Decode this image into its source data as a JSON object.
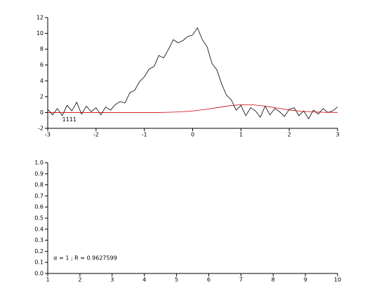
{
  "chart_data": [
    {
      "type": "line",
      "annotation": "1111",
      "xlim": [
        -3,
        3
      ],
      "xticks": [
        -3,
        -2,
        -1,
        0,
        1,
        2,
        3
      ],
      "ylim": [
        -2,
        12
      ],
      "yticks": [
        -2,
        0,
        2,
        4,
        6,
        8,
        10,
        12
      ],
      "series": [
        {
          "color": "#000000",
          "x": [
            -3.0,
            -2.9,
            -2.8,
            -2.7,
            -2.6,
            -2.5,
            -2.4,
            -2.3,
            -2.2,
            -2.1,
            -2.0,
            -1.9,
            -1.8,
            -1.7,
            -1.6,
            -1.5,
            -1.4,
            -1.3,
            -1.2,
            -1.1,
            -1.0,
            -0.9,
            -0.8,
            -0.7,
            -0.6,
            -0.5,
            -0.4,
            -0.3,
            -0.2,
            -0.1,
            0.0,
            0.1,
            0.2,
            0.3,
            0.4,
            0.5,
            0.6,
            0.7,
            0.8,
            0.9,
            1.0,
            1.1,
            1.2,
            1.3,
            1.4,
            1.5,
            1.6,
            1.7,
            1.8,
            1.9,
            2.0,
            2.1,
            2.2,
            2.3,
            2.4,
            2.5,
            2.6,
            2.7,
            2.8,
            2.9,
            3.0
          ],
          "values": [
            0.4,
            -0.3,
            0.5,
            -0.4,
            0.9,
            0.2,
            1.3,
            -0.2,
            0.8,
            0.1,
            0.6,
            -0.3,
            0.7,
            0.3,
            1.0,
            1.4,
            1.2,
            2.5,
            2.8,
            3.9,
            4.5,
            5.5,
            5.8,
            7.2,
            6.9,
            8.0,
            9.2,
            8.8,
            9.1,
            9.6,
            9.8,
            10.7,
            9.2,
            8.3,
            6.2,
            5.4,
            3.6,
            2.2,
            1.6,
            0.3,
            0.9,
            -0.4,
            0.6,
            0.2,
            -0.6,
            0.8,
            -0.3,
            0.5,
            0.1,
            -0.5,
            0.4,
            0.6,
            -0.4,
            0.2,
            -0.8,
            0.3,
            -0.2,
            0.5,
            0.0,
            0.2,
            0.7
          ]
        },
        {
          "color": "#cc0000",
          "x": [
            -3.0,
            -2.75,
            -2.5,
            -2.25,
            -2.0,
            -1.75,
            -1.5,
            -1.25,
            -1.0,
            -0.75,
            -0.5,
            -0.25,
            0.0,
            0.25,
            0.5,
            0.75,
            1.0,
            1.25,
            1.5,
            1.75,
            2.0,
            2.25,
            2.5,
            2.75,
            3.0
          ],
          "values": [
            0,
            0,
            0,
            0,
            0,
            0,
            0,
            0,
            0,
            0,
            0.03,
            0.08,
            0.19,
            0.37,
            0.61,
            0.84,
            0.99,
            0.97,
            0.8,
            0.56,
            0.32,
            0.16,
            0.07,
            0.02,
            0.01
          ]
        }
      ]
    },
    {
      "type": "line",
      "annotation": "α = 1 ; R = 0.9627599",
      "xlim": [
        1,
        10
      ],
      "xticks": [
        1,
        2,
        3,
        4,
        5,
        6,
        7,
        8,
        9,
        10
      ],
      "ylim": [
        0,
        1
      ],
      "yticks": [
        {
          "value": 0,
          "label": "0.0"
        },
        0.1,
        0.2,
        0.3,
        0.4,
        0.5,
        0.6,
        0.7,
        0.8,
        0.9,
        {
          "value": 1,
          "label": "1.0"
        }
      ],
      "series": []
    }
  ]
}
